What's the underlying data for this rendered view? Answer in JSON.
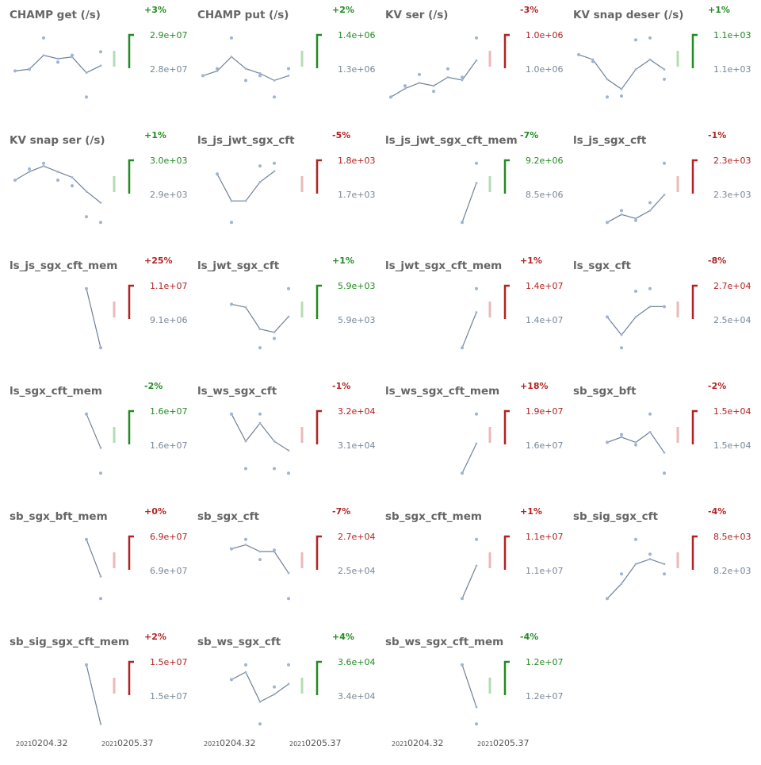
{
  "colors": {
    "title": "#666666",
    "line": "#6f8196",
    "point": "#9fb4d3",
    "good": "#228b22",
    "good_light": "#b4dcb4",
    "bad": "#b22222",
    "bad_light": "#ebb9b9",
    "neutral": "#778899"
  },
  "x_axis": {
    "tick_labels": [
      {
        "prefix": "2021",
        "label": "0204.32"
      },
      {
        "prefix": "2021",
        "label": "0205.37"
      }
    ]
  },
  "chart_data": [
    {
      "type": "line",
      "title": "CHAMP get (/s)",
      "x": [
        1,
        2,
        3,
        4,
        5,
        6,
        7
      ],
      "values": [
        27950000.0,
        28000000.0,
        28400000.0,
        28300000.0,
        28350000.0,
        27900000.0,
        28100000.0
      ],
      "points": [
        27950000.0,
        28000000.0,
        28900000.0,
        28200000.0,
        28400000.0,
        27200000.0,
        28500000.0
      ],
      "labels": {
        "top": "2.9e+07",
        "bottom": "2.8e+07",
        "pct": "+3%"
      },
      "trend": "good"
    },
    {
      "type": "line",
      "title": "CHAMP put (/s)",
      "x": [
        1,
        2,
        3,
        4,
        5,
        6,
        7
      ],
      "values": [
        1290000.0,
        1310000.0,
        1370000.0,
        1320000.0,
        1300000.0,
        1270000.0,
        1290000.0
      ],
      "points": [
        1290000.0,
        1320000.0,
        1450000.0,
        1270000.0,
        1290000.0,
        1200000.0,
        1320000.0
      ],
      "labels": {
        "top": "1.4e+06",
        "bottom": "1.3e+06",
        "pct": "+2%"
      },
      "trend": "good"
    },
    {
      "type": "line",
      "title": "KV ser (/s)",
      "x": [
        1,
        2,
        3,
        4,
        5,
        6,
        7
      ],
      "values": [
        940000.0,
        970000.0,
        990000.0,
        980000.0,
        1010000.0,
        1000000.0,
        1070000.0
      ],
      "points": [
        940000.0,
        980000.0,
        1020000.0,
        960000.0,
        1040000.0,
        1010000.0,
        1150000.0
      ],
      "labels": {
        "top": "1.0e+06",
        "bottom": "1.0e+06",
        "pct": "-3%"
      },
      "trend": "bad"
    },
    {
      "type": "line",
      "title": "KV snap deser (/s)",
      "x": [
        1,
        2,
        3,
        4,
        5,
        6,
        7
      ],
      "values": [
        1115,
        1110,
        1090,
        1080,
        1100,
        1110,
        1100
      ],
      "points": [
        1115,
        1108,
        1072,
        1073,
        1130,
        1132,
        1090
      ],
      "labels": {
        "top": "1.1e+03",
        "bottom": "1.1e+03",
        "pct": "+1%"
      },
      "trend": "good"
    },
    {
      "type": "line",
      "title": "KV snap ser (/s)",
      "x": [
        1,
        2,
        3,
        4,
        5,
        6,
        7
      ],
      "values": [
        3030,
        3060,
        3080,
        3060,
        3040,
        2990,
        2950
      ],
      "points": [
        3030,
        3070,
        3090,
        3030,
        3010,
        2900,
        2880
      ],
      "labels": {
        "top": "3.0e+03",
        "bottom": "2.9e+03",
        "pct": "+1%"
      },
      "trend": "good"
    },
    {
      "type": "line",
      "title": "ls_js_jwt_sgx_cft",
      "x": [
        1,
        2,
        3,
        4,
        5,
        6,
        7
      ],
      "values": [
        null,
        1780,
        1730,
        1730,
        1765,
        1785,
        null
      ],
      "points": [
        null,
        1780,
        1690,
        null,
        1795,
        1800,
        null
      ],
      "labels": {
        "top": "1.8e+03",
        "bottom": "1.7e+03",
        "pct": "-5%"
      },
      "trend": "bad"
    },
    {
      "type": "line",
      "title": "ls_js_jwt_sgx_cft_mem",
      "x": [
        1,
        2,
        3,
        4,
        5,
        6,
        7
      ],
      "values": [
        null,
        null,
        null,
        null,
        null,
        8500000.0,
        9200000.0
      ],
      "points": [
        null,
        null,
        null,
        null,
        null,
        8500000.0,
        9550000.0
      ],
      "labels": {
        "top": "9.2e+06",
        "bottom": "8.5e+06",
        "pct": "-7%"
      },
      "trend": "good"
    },
    {
      "type": "line",
      "title": "ls_js_sgx_cft",
      "x": [
        1,
        2,
        3,
        4,
        5,
        6,
        7
      ],
      "values": [
        null,
        null,
        2160,
        2180,
        2170,
        2190,
        2230
      ],
      "points": [
        null,
        null,
        2160,
        2190,
        2165,
        2210,
        2310
      ],
      "labels": {
        "top": "2.3e+03",
        "bottom": "2.3e+03",
        "pct": "-1%"
      },
      "trend": "bad"
    },
    {
      "type": "line",
      "title": "ls_js_sgx_cft_mem",
      "x": [
        1,
        2,
        3,
        4,
        5,
        6,
        7
      ],
      "values": [
        null,
        null,
        null,
        null,
        null,
        9100000.0,
        9000000.0
      ],
      "points": [
        null,
        null,
        null,
        null,
        null,
        9100000.0,
        9000000.0
      ],
      "labels": {
        "top": "1.1e+07",
        "bottom": "9.1e+06",
        "pct": "+25%"
      },
      "trend": "bad"
    },
    {
      "type": "line",
      "title": "ls_jwt_sgx_cft",
      "x": [
        1,
        2,
        3,
        4,
        5,
        6,
        7
      ],
      "values": [
        null,
        null,
        5920,
        5915,
        5880,
        5875,
        5900
      ],
      "points": [
        null,
        null,
        5920,
        null,
        5850,
        5865,
        5945
      ],
      "labels": {
        "top": "5.9e+03",
        "bottom": "5.9e+03",
        "pct": "+1%"
      },
      "trend": "good"
    },
    {
      "type": "line",
      "title": "ls_jwt_sgx_cft_mem",
      "x": [
        1,
        2,
        3,
        4,
        5,
        6,
        7
      ],
      "values": [
        null,
        null,
        null,
        null,
        null,
        13700000.0,
        14000000.0
      ],
      "points": [
        null,
        null,
        null,
        null,
        null,
        13700000.0,
        14200000.0
      ],
      "labels": {
        "top": "1.4e+07",
        "bottom": "1.4e+07",
        "pct": "+1%"
      },
      "trend": "bad"
    },
    {
      "type": "line",
      "title": "ls_sgx_cft",
      "x": [
        1,
        2,
        3,
        4,
        5,
        6,
        7
      ],
      "values": [
        null,
        null,
        26200.0,
        25500.0,
        26200.0,
        26600.0,
        26600.0
      ],
      "points": [
        null,
        null,
        26200.0,
        25000.0,
        27200.0,
        27300.0,
        26600.0
      ],
      "labels": {
        "top": "2.7e+04",
        "bottom": "2.5e+04",
        "pct": "-8%"
      },
      "trend": "bad"
    },
    {
      "type": "line",
      "title": "ls_sgx_cft_mem",
      "x": [
        1,
        2,
        3,
        4,
        5,
        6,
        7
      ],
      "values": [
        null,
        null,
        null,
        null,
        null,
        16600000.0,
        16200000.0
      ],
      "points": [
        null,
        null,
        null,
        null,
        null,
        16600000.0,
        15900000.0
      ],
      "labels": {
        "top": "1.6e+07",
        "bottom": "1.6e+07",
        "pct": "-2%"
      },
      "trend": "good"
    },
    {
      "type": "line",
      "title": "ls_ws_sgx_cft",
      "x": [
        1,
        2,
        3,
        4,
        5,
        6,
        7
      ],
      "values": [
        null,
        null,
        37000.0,
        34000.0,
        36000.0,
        34000.0,
        33000.0
      ],
      "points": [
        null,
        null,
        37000.0,
        31000.0,
        37000.0,
        31000.0,
        30500.0
      ],
      "labels": {
        "top": "3.2e+04",
        "bottom": "3.1e+04",
        "pct": "-1%"
      },
      "trend": "bad"
    },
    {
      "type": "line",
      "title": "ls_ws_sgx_cft_mem",
      "x": [
        1,
        2,
        3,
        4,
        5,
        6,
        7
      ],
      "values": [
        null,
        null,
        null,
        null,
        null,
        16000000.0,
        16100000.0
      ],
      "points": [
        null,
        null,
        null,
        null,
        null,
        16000000.0,
        16200000.0
      ],
      "labels": {
        "top": "1.9e+07",
        "bottom": "1.6e+07",
        "pct": "+18%"
      },
      "trend": "bad"
    },
    {
      "type": "line",
      "title": "sb_sgx_bft",
      "x": [
        1,
        2,
        3,
        4,
        5,
        6,
        7
      ],
      "values": [
        null,
        null,
        15400.0,
        15600.0,
        15400.0,
        15800.0,
        15000.0
      ],
      "points": [
        null,
        null,
        15400.0,
        15700.0,
        15300.0,
        16500.0,
        14200.0
      ],
      "labels": {
        "top": "1.5e+04",
        "bottom": "1.5e+04",
        "pct": "-2%"
      },
      "trend": "bad"
    },
    {
      "type": "line",
      "title": "sb_sgx_bft_mem",
      "x": [
        1,
        2,
        3,
        4,
        5,
        6,
        7
      ],
      "values": [
        null,
        null,
        null,
        null,
        null,
        71000000.0,
        66000000.0
      ],
      "points": [
        null,
        null,
        null,
        null,
        null,
        71000000.0,
        63000000.0
      ],
      "labels": {
        "top": "6.9e+07",
        "bottom": "6.9e+07",
        "pct": "+0%"
      },
      "trend": "bad"
    },
    {
      "type": "line",
      "title": "sb_sgx_cft",
      "x": [
        1,
        2,
        3,
        4,
        5,
        6,
        7
      ],
      "values": [
        null,
        null,
        28000.0,
        28300.0,
        27800.0,
        27800.0,
        26200.0
      ],
      "points": [
        null,
        null,
        28000.0,
        28700.0,
        27200.0,
        27900.0,
        24300.0
      ],
      "labels": {
        "top": "2.7e+04",
        "bottom": "2.5e+04",
        "pct": "-7%"
      },
      "trend": "bad"
    },
    {
      "type": "line",
      "title": "sb_sgx_cft_mem",
      "x": [
        1,
        2,
        3,
        4,
        5,
        6,
        7
      ],
      "values": [
        null,
        null,
        null,
        null,
        null,
        10700000.0,
        10950000.0
      ],
      "points": [
        null,
        null,
        null,
        null,
        null,
        10700000.0,
        11150000.0
      ],
      "labels": {
        "top": "1.1e+07",
        "bottom": "1.1e+07",
        "pct": "+1%"
      },
      "trend": "bad"
    },
    {
      "type": "line",
      "title": "sb_sig_sgx_cft",
      "x": [
        1,
        2,
        3,
        4,
        5,
        6,
        7
      ],
      "values": [
        null,
        null,
        7800.0,
        8100.0,
        8500.0,
        8600.0,
        8500.0
      ],
      "points": [
        null,
        null,
        7800.0,
        8300.0,
        9000.0,
        8700.0,
        8300.0
      ],
      "labels": {
        "top": "8.5e+03",
        "bottom": "8.2e+03",
        "pct": "-4%"
      },
      "trend": "bad"
    },
    {
      "type": "line",
      "title": "sb_sig_sgx_cft_mem",
      "x": [
        1,
        2,
        3,
        4,
        5,
        6,
        7
      ],
      "values": [
        null,
        null,
        null,
        null,
        null,
        15700000.0,
        15000000.0
      ],
      "points": [
        null,
        null,
        null,
        null,
        null,
        15700000.0,
        null
      ],
      "labels": {
        "top": "1.5e+07",
        "bottom": "1.5e+07",
        "pct": "+2%"
      },
      "trend": "bad"
    },
    {
      "type": "line",
      "title": "sb_ws_sgx_cft",
      "x": [
        1,
        2,
        3,
        4,
        5,
        6,
        7
      ],
      "values": [
        null,
        null,
        34500.0,
        35000.0,
        33000.0,
        33500.0,
        34200.0
      ],
      "points": [
        null,
        null,
        34500.0,
        35500.0,
        31500.0,
        34000.0,
        35500.0
      ],
      "labels": {
        "top": "3.6e+04",
        "bottom": "3.4e+04",
        "pct": "+4%"
      },
      "trend": "good"
    },
    {
      "type": "line",
      "title": "sb_ws_sgx_cft_mem",
      "x": [
        1,
        2,
        3,
        4,
        5,
        6,
        7
      ],
      "values": [
        null,
        null,
        null,
        null,
        null,
        12700000.0,
        12200000.0
      ],
      "points": [
        null,
        null,
        null,
        null,
        null,
        12700000.0,
        12000000.0
      ],
      "labels": {
        "top": "1.2e+07",
        "bottom": "1.2e+07",
        "pct": "-4%"
      },
      "trend": "good"
    }
  ]
}
